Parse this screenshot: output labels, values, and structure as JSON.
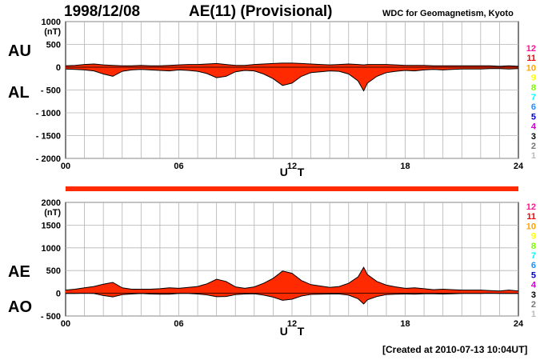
{
  "header": {
    "date": "1998/12/08",
    "title": "AE(11) (Provisional)",
    "org": "WDC for Geomagnetism, Kyoto"
  },
  "footer": {
    "created": "[Created at 2010-07-13 10:04UT]"
  },
  "colors": {
    "fill": "#ff2a00",
    "line": "#000000",
    "grid": "#b4b4b4"
  },
  "station_numbers": [
    {
      "label": "12",
      "color": "#ff1493"
    },
    {
      "label": "11",
      "color": "#ff0000"
    },
    {
      "label": "10",
      "color": "#ffa500"
    },
    {
      "label": "9",
      "color": "#ffff00"
    },
    {
      "label": "8",
      "color": "#7cfc00"
    },
    {
      "label": "7",
      "color": "#00ffff"
    },
    {
      "label": "6",
      "color": "#1e90ff"
    },
    {
      "label": "5",
      "color": "#0000cd"
    },
    {
      "label": "4",
      "color": "#cc00cc"
    },
    {
      "label": "3",
      "color": "#000000"
    },
    {
      "label": "2",
      "color": "#777777"
    },
    {
      "label": "1",
      "color": "#bbbbbb"
    }
  ],
  "chart_data": [
    {
      "type": "area",
      "unit": "(nT)",
      "xlabel": "U T",
      "xlim": [
        0,
        24
      ],
      "ylim": [
        -2000,
        1000
      ],
      "yticks": [
        "1000",
        "500",
        "0",
        "- 500",
        "- 1000",
        "- 1500",
        "- 2000"
      ],
      "ytick_values": [
        1000,
        500,
        0,
        -500,
        -1000,
        -1500,
        -2000
      ],
      "xticks": [
        "00",
        "06",
        "12",
        "18",
        "24"
      ],
      "xtick_values": [
        0,
        6,
        12,
        18,
        24
      ],
      "grid": true,
      "upper_label": "AU",
      "lower_label": "AL",
      "series": [
        {
          "name": "AU",
          "x": [
            0,
            0.5,
            1,
            1.5,
            2,
            2.5,
            3,
            3.5,
            4,
            4.5,
            5,
            5.5,
            6,
            6.5,
            7,
            7.5,
            8,
            8.5,
            9,
            9.5,
            10,
            10.5,
            11,
            11.5,
            12,
            12.5,
            13,
            13.5,
            14,
            14.5,
            15,
            15.5,
            15.8,
            16,
            16.5,
            17,
            17.5,
            18,
            18.5,
            19,
            19.5,
            20,
            20.5,
            21,
            21.5,
            22,
            22.5,
            23,
            23.5,
            24
          ],
          "values": [
            30,
            40,
            60,
            70,
            50,
            40,
            30,
            30,
            40,
            30,
            30,
            40,
            50,
            60,
            60,
            70,
            80,
            60,
            40,
            40,
            60,
            70,
            80,
            90,
            90,
            80,
            70,
            60,
            50,
            60,
            70,
            60,
            50,
            60,
            60,
            60,
            50,
            40,
            40,
            40,
            30,
            30,
            30,
            30,
            30,
            30,
            30,
            20,
            30,
            20
          ]
        },
        {
          "name": "AL",
          "x": [
            0,
            0.5,
            1,
            1.5,
            2,
            2.5,
            3,
            3.5,
            4,
            4.5,
            5,
            5.5,
            6,
            6.5,
            7,
            7.5,
            8,
            8.5,
            9,
            9.5,
            10,
            10.5,
            11,
            11.5,
            12,
            12.5,
            13,
            13.5,
            14,
            14.5,
            15,
            15.5,
            15.8,
            16,
            16.5,
            17,
            17.5,
            18,
            18.5,
            19,
            19.5,
            20,
            20.5,
            21,
            21.5,
            22,
            22.5,
            23,
            23.5,
            24
          ],
          "values": [
            -40,
            -50,
            -60,
            -80,
            -150,
            -200,
            -90,
            -60,
            -50,
            -60,
            -70,
            -80,
            -60,
            -70,
            -90,
            -140,
            -230,
            -200,
            -100,
            -70,
            -80,
            -150,
            -250,
            -400,
            -350,
            -200,
            -120,
            -100,
            -80,
            -90,
            -150,
            -300,
            -520,
            -350,
            -200,
            -120,
            -90,
            -70,
            -80,
            -60,
            -50,
            -60,
            -50,
            -40,
            -40,
            -40,
            -30,
            -30,
            -40,
            -30
          ]
        }
      ]
    },
    {
      "type": "area",
      "unit": "(nT)",
      "xlabel": "U T",
      "xlim": [
        0,
        24
      ],
      "ylim": [
        -500,
        2000
      ],
      "yticks": [
        "2000",
        "1500",
        "1000",
        "500",
        "0",
        "- 500"
      ],
      "ytick_values": [
        2000,
        1500,
        1000,
        500,
        0,
        -500
      ],
      "xticks": [
        "00",
        "06",
        "12",
        "18",
        "24"
      ],
      "xtick_values": [
        0,
        6,
        12,
        18,
        24
      ],
      "grid": true,
      "upper_label": "AE",
      "lower_label": "AO",
      "series": [
        {
          "name": "AE",
          "x": [
            0,
            0.5,
            1,
            1.5,
            2,
            2.5,
            3,
            3.5,
            4,
            4.5,
            5,
            5.5,
            6,
            6.5,
            7,
            7.5,
            8,
            8.5,
            9,
            9.5,
            10,
            10.5,
            11,
            11.5,
            12,
            12.5,
            13,
            13.5,
            14,
            14.5,
            15,
            15.5,
            15.8,
            16,
            16.5,
            17,
            17.5,
            18,
            18.5,
            19,
            19.5,
            20,
            20.5,
            21,
            21.5,
            22,
            22.5,
            23,
            23.5,
            24
          ],
          "values": [
            70,
            90,
            120,
            150,
            200,
            240,
            120,
            90,
            90,
            90,
            100,
            120,
            110,
            130,
            150,
            210,
            310,
            260,
            140,
            110,
            140,
            220,
            330,
            490,
            440,
            280,
            190,
            160,
            130,
            150,
            220,
            360,
            570,
            410,
            260,
            180,
            140,
            110,
            120,
            100,
            80,
            90,
            80,
            70,
            70,
            70,
            60,
            50,
            70,
            50
          ]
        },
        {
          "name": "AO",
          "x": [
            0,
            0.5,
            1,
            1.5,
            2,
            2.5,
            3,
            3.5,
            4,
            4.5,
            5,
            5.5,
            6,
            6.5,
            7,
            7.5,
            8,
            8.5,
            9,
            9.5,
            10,
            10.5,
            11,
            11.5,
            12,
            12.5,
            13,
            13.5,
            14,
            14.5,
            15,
            15.5,
            15.8,
            16,
            16.5,
            17,
            17.5,
            18,
            18.5,
            19,
            19.5,
            20,
            20.5,
            21,
            21.5,
            22,
            22.5,
            23,
            23.5,
            24
          ],
          "values": [
            -5,
            -5,
            0,
            -5,
            -50,
            -80,
            -30,
            -15,
            -5,
            -15,
            -20,
            -20,
            -5,
            -5,
            -15,
            -35,
            -75,
            -70,
            -30,
            -15,
            -10,
            -40,
            -85,
            -155,
            -130,
            -60,
            -25,
            -20,
            -15,
            -15,
            -40,
            -120,
            -235,
            -145,
            -70,
            -30,
            -20,
            -15,
            -20,
            -10,
            -10,
            -15,
            -10,
            -5,
            -5,
            -5,
            0,
            -5,
            -5,
            -5
          ]
        }
      ]
    }
  ]
}
